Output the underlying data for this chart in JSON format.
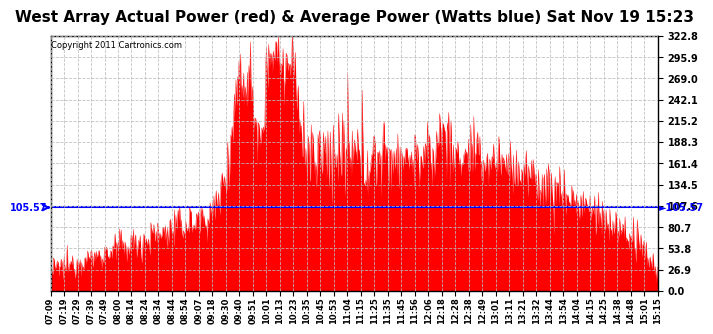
{
  "title": "West Array Actual Power (red) & Average Power (Watts blue) Sat Nov 19 15:23",
  "copyright": "Copyright 2011 Cartronics.com",
  "avg_power": 105.57,
  "ymin": 0.0,
  "ymax": 322.8,
  "yticks": [
    0.0,
    26.9,
    53.8,
    80.7,
    107.6,
    134.5,
    161.4,
    188.3,
    215.2,
    242.1,
    269.0,
    295.9,
    322.8
  ],
  "area_color": "#FF0000",
  "avg_line_color": "#0000FF",
  "background_color": "#FFFFFF",
  "grid_color": "#BBBBBB",
  "title_fontsize": 11,
  "time_labels": [
    "07:09",
    "07:19",
    "07:29",
    "07:39",
    "07:49",
    "08:00",
    "08:14",
    "08:24",
    "08:34",
    "08:44",
    "08:54",
    "09:07",
    "09:18",
    "09:30",
    "09:40",
    "09:51",
    "10:01",
    "10:13",
    "10:23",
    "10:35",
    "10:45",
    "10:53",
    "11:04",
    "11:15",
    "11:25",
    "11:35",
    "11:45",
    "11:56",
    "12:06",
    "12:18",
    "12:28",
    "12:38",
    "12:49",
    "13:01",
    "13:11",
    "13:21",
    "13:32",
    "13:44",
    "13:54",
    "14:04",
    "14:15",
    "14:25",
    "14:38",
    "14:48",
    "15:01",
    "15:15"
  ],
  "seed": 12345,
  "n_points": 800
}
